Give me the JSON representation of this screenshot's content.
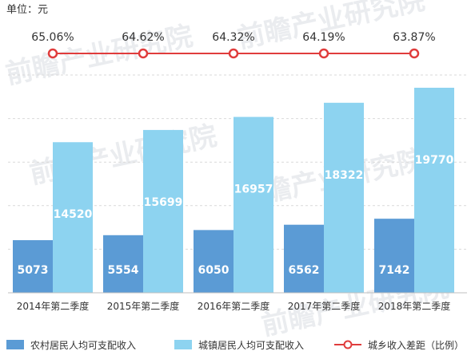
{
  "chart_data": {
    "type": "bar+line",
    "unit_label": "单位：元",
    "watermark": "前瞻产业研究院",
    "categories": [
      "2014年第二季度",
      "2015年第二季度",
      "2016年第二季度",
      "2017年第二季度",
      "2018年第二季度"
    ],
    "series": [
      {
        "name": "农村居民人均可支配收入",
        "type": "bar",
        "color": "#5b9bd5",
        "values": [
          5073,
          5554,
          6050,
          6562,
          7142
        ]
      },
      {
        "name": "城镇居民人均可支配收入",
        "type": "bar",
        "color": "#8dd3f0",
        "values": [
          14520,
          15699,
          16957,
          18322,
          19770
        ]
      },
      {
        "name": "城乡收入差距（比例）",
        "type": "line",
        "color": "#e03c3c",
        "values": [
          65.06,
          64.62,
          64.32,
          64.19,
          63.87
        ],
        "labels": [
          "65.06%",
          "64.62%",
          "64.32%",
          "64.19%",
          "63.87%"
        ]
      }
    ],
    "ylim": [
      0,
      21000
    ],
    "grid": true,
    "legend_position": "bottom"
  }
}
